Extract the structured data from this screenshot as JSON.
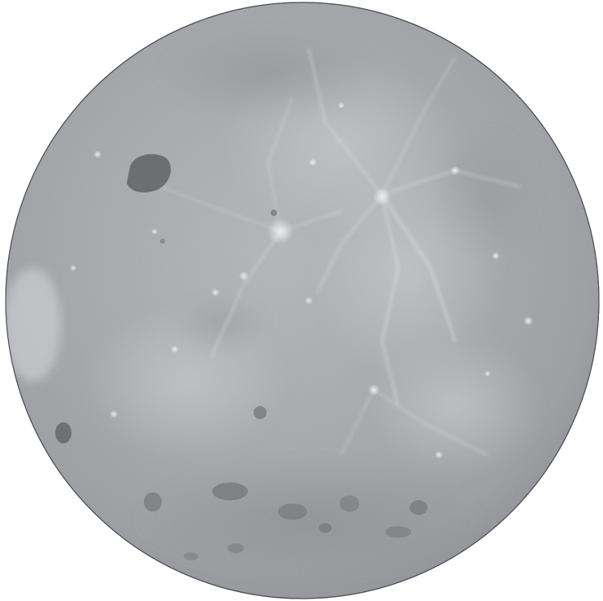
{
  "image": {
    "subject": "lunar-far-side",
    "background_color": "#ffffff",
    "surface_color": "#a3a5a8",
    "highlands_color": "#b9bbbe",
    "mare_color": "#5f6266",
    "ray_color": "#e2e4e7"
  }
}
